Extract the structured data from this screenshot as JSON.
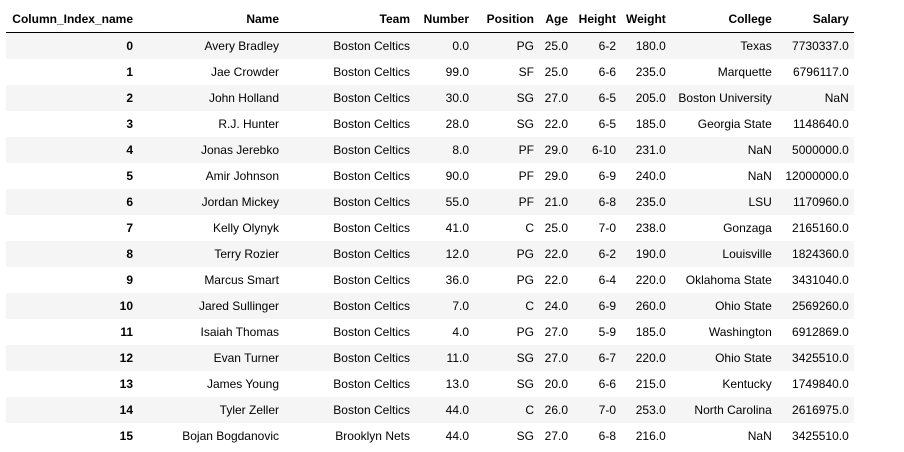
{
  "table": {
    "columns": [
      "Column_Index_name",
      "Name",
      "Team",
      "Number",
      "Position",
      "Age",
      "Height",
      "Weight",
      "College",
      "Salary"
    ],
    "rows": [
      {
        "index": "0",
        "cells": [
          "Avery Bradley",
          "Boston Celtics",
          "0.0",
          "PG",
          "25.0",
          "6-2",
          "180.0",
          "Texas",
          "7730337.0"
        ]
      },
      {
        "index": "1",
        "cells": [
          "Jae Crowder",
          "Boston Celtics",
          "99.0",
          "SF",
          "25.0",
          "6-6",
          "235.0",
          "Marquette",
          "6796117.0"
        ]
      },
      {
        "index": "2",
        "cells": [
          "John Holland",
          "Boston Celtics",
          "30.0",
          "SG",
          "27.0",
          "6-5",
          "205.0",
          "Boston University",
          "NaN"
        ]
      },
      {
        "index": "3",
        "cells": [
          "R.J. Hunter",
          "Boston Celtics",
          "28.0",
          "SG",
          "22.0",
          "6-5",
          "185.0",
          "Georgia State",
          "1148640.0"
        ]
      },
      {
        "index": "4",
        "cells": [
          "Jonas Jerebko",
          "Boston Celtics",
          "8.0",
          "PF",
          "29.0",
          "6-10",
          "231.0",
          "NaN",
          "5000000.0"
        ]
      },
      {
        "index": "5",
        "cells": [
          "Amir Johnson",
          "Boston Celtics",
          "90.0",
          "PF",
          "29.0",
          "6-9",
          "240.0",
          "NaN",
          "12000000.0"
        ]
      },
      {
        "index": "6",
        "cells": [
          "Jordan Mickey",
          "Boston Celtics",
          "55.0",
          "PF",
          "21.0",
          "6-8",
          "235.0",
          "LSU",
          "1170960.0"
        ]
      },
      {
        "index": "7",
        "cells": [
          "Kelly Olynyk",
          "Boston Celtics",
          "41.0",
          "C",
          "25.0",
          "7-0",
          "238.0",
          "Gonzaga",
          "2165160.0"
        ]
      },
      {
        "index": "8",
        "cells": [
          "Terry Rozier",
          "Boston Celtics",
          "12.0",
          "PG",
          "22.0",
          "6-2",
          "190.0",
          "Louisville",
          "1824360.0"
        ]
      },
      {
        "index": "9",
        "cells": [
          "Marcus Smart",
          "Boston Celtics",
          "36.0",
          "PG",
          "22.0",
          "6-4",
          "220.0",
          "Oklahoma State",
          "3431040.0"
        ]
      },
      {
        "index": "10",
        "cells": [
          "Jared Sullinger",
          "Boston Celtics",
          "7.0",
          "C",
          "24.0",
          "6-9",
          "260.0",
          "Ohio State",
          "2569260.0"
        ]
      },
      {
        "index": "11",
        "cells": [
          "Isaiah Thomas",
          "Boston Celtics",
          "4.0",
          "PG",
          "27.0",
          "5-9",
          "185.0",
          "Washington",
          "6912869.0"
        ]
      },
      {
        "index": "12",
        "cells": [
          "Evan Turner",
          "Boston Celtics",
          "11.0",
          "SG",
          "27.0",
          "6-7",
          "220.0",
          "Ohio State",
          "3425510.0"
        ]
      },
      {
        "index": "13",
        "cells": [
          "James Young",
          "Boston Celtics",
          "13.0",
          "SG",
          "20.0",
          "6-6",
          "215.0",
          "Kentucky",
          "1749840.0"
        ]
      },
      {
        "index": "14",
        "cells": [
          "Tyler Zeller",
          "Boston Celtics",
          "44.0",
          "C",
          "26.0",
          "7-0",
          "253.0",
          "North Carolina",
          "2616975.0"
        ]
      },
      {
        "index": "15",
        "cells": [
          "Bojan Bogdanovic",
          "Brooklyn Nets",
          "44.0",
          "SG",
          "27.0",
          "6-8",
          "216.0",
          "NaN",
          "3425510.0"
        ]
      }
    ]
  },
  "colors": {
    "stripe": "#f5f5f5",
    "header_border": "#000000",
    "text": "#000000"
  }
}
